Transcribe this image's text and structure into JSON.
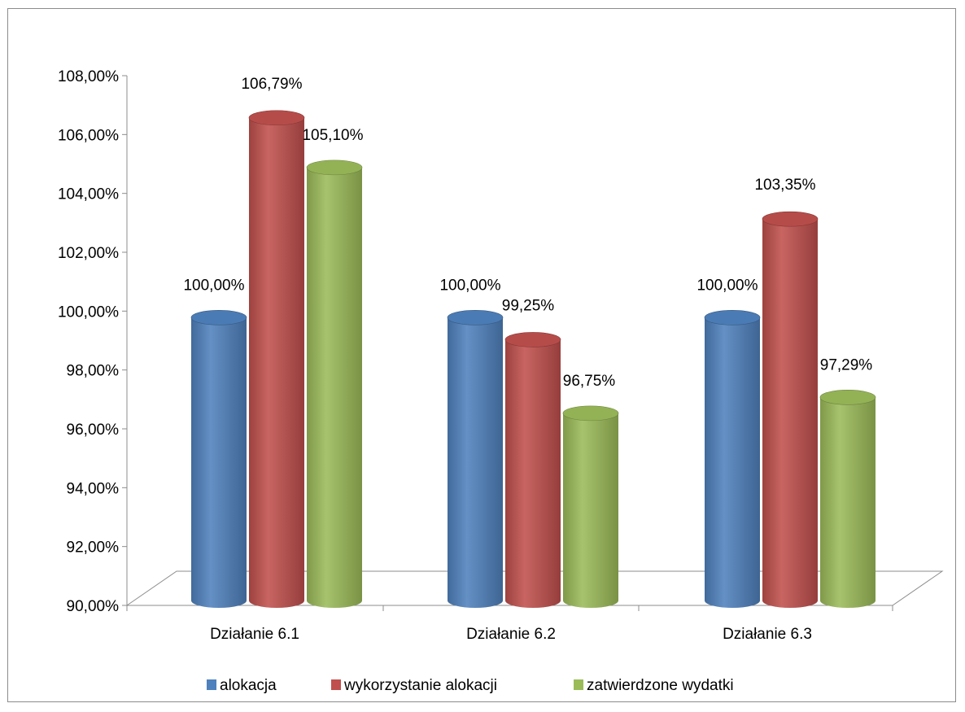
{
  "chart_data": {
    "type": "bar",
    "style": "3d-cylinder",
    "categories": [
      "Działanie 6.1",
      "Działanie 6.2",
      "Działanie 6.3"
    ],
    "series": [
      {
        "name": "alokacja",
        "values": [
          100.0,
          100.0,
          100.0
        ],
        "labels": [
          "100,00%",
          "100,00%",
          "100,00%"
        ],
        "color": "#4F81BD"
      },
      {
        "name": "wykorzystanie alokacji",
        "values": [
          106.79,
          99.25,
          103.35
        ],
        "labels": [
          "106,79%",
          "99,25%",
          "103,35%"
        ],
        "color": "#C0504D"
      },
      {
        "name": "zatwierdzone wydatki",
        "values": [
          105.1,
          96.75,
          97.29
        ],
        "labels": [
          "105,10%",
          "96,75%",
          "97,29%"
        ],
        "color": "#9BBB59"
      }
    ],
    "ylim": [
      90,
      108
    ],
    "yticks": [
      {
        "value": 90,
        "label": "90,00%"
      },
      {
        "value": 92,
        "label": "92,00%"
      },
      {
        "value": 94,
        "label": "94,00%"
      },
      {
        "value": 96,
        "label": "96,00%"
      },
      {
        "value": 98,
        "label": "98,00%"
      },
      {
        "value": 100,
        "label": "100,00%"
      },
      {
        "value": 102,
        "label": "102,00%"
      },
      {
        "value": 104,
        "label": "104,00%"
      },
      {
        "value": 106,
        "label": "106,00%"
      },
      {
        "value": 108,
        "label": "108,00%"
      }
    ],
    "grid": false,
    "legend_position": "bottom",
    "title": "",
    "xlabel": "",
    "ylabel": ""
  }
}
